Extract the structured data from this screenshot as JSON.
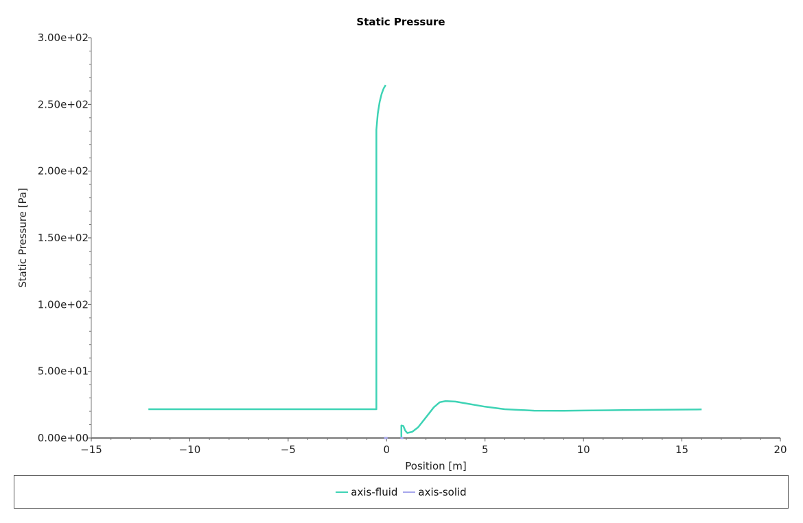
{
  "chart_data": {
    "type": "line",
    "title": "Static Pressure",
    "xlabel": "Position [m]",
    "ylabel": "Static Pressure [Pa]",
    "xlim": [
      -15,
      20
    ],
    "ylim": [
      0,
      300
    ],
    "xticks": [
      -15,
      -10,
      -5,
      0,
      5,
      10,
      15,
      20
    ],
    "xtick_labels": [
      "−15",
      "−10",
      "−5",
      "0",
      "5",
      "10",
      "15",
      "20"
    ],
    "yticks": [
      0,
      50,
      100,
      150,
      200,
      250,
      300
    ],
    "ytick_labels": [
      "0.00e+00",
      "5.00e+01",
      "1.00e+02",
      "1.50e+02",
      "2.00e+02",
      "2.50e+02",
      "3.00e+02"
    ],
    "grid": false,
    "legend_placement": "bottom",
    "series": [
      {
        "name": "axis-fluid",
        "color": "#3ed3b5",
        "segments": [
          [
            [
              -12.1,
              21.6
            ],
            [
              -6,
              21.6
            ],
            [
              -0.52,
              21.6
            ],
            [
              -0.52,
              231
            ],
            [
              -0.45,
              243
            ],
            [
              -0.35,
              252
            ],
            [
              -0.25,
              258
            ],
            [
              -0.15,
              262
            ],
            [
              -0.05,
              264.5
            ]
          ],
          [
            [
              0.75,
              0
            ],
            [
              0.75,
              9.4
            ],
            [
              0.85,
              9.0
            ],
            [
              0.95,
              5.5
            ],
            [
              1.05,
              3.8
            ],
            [
              1.3,
              4.6
            ],
            [
              1.6,
              8
            ],
            [
              2.0,
              15.5
            ],
            [
              2.4,
              23
            ],
            [
              2.7,
              26.8
            ],
            [
              3.0,
              27.7
            ],
            [
              3.5,
              27.3
            ],
            [
              4.0,
              26
            ],
            [
              5.0,
              23.5
            ],
            [
              6.0,
              21.6
            ],
            [
              7.5,
              20.5
            ],
            [
              9.0,
              20.4
            ],
            [
              10.0,
              20.6
            ],
            [
              12.0,
              20.9
            ],
            [
              14.0,
              21.2
            ],
            [
              16.0,
              21.4
            ]
          ]
        ]
      },
      {
        "name": "axis-solid",
        "color": "#a6a6ec",
        "segments": [
          [
            [
              -0.12,
              0
            ],
            [
              0.05,
              0
            ]
          ],
          [
            [
              0.7,
              0
            ],
            [
              0.85,
              0
            ]
          ]
        ]
      }
    ]
  }
}
